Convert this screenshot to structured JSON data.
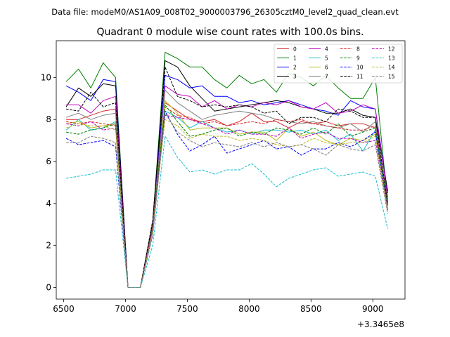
{
  "suptitle": "Data file: modeM0/AS1A09_008T02_9000003796_26305cztM0_level2_quad_clean.evt",
  "chart_data": {
    "type": "line",
    "title": "Quadrant 0 module wise count rates with 100.0s bins.",
    "xlabel": "",
    "ylabel": "",
    "x_offset_label": "+3.3465e8",
    "xlim": [
      6440,
      9260
    ],
    "ylim": [
      -0.55,
      11.75
    ],
    "xticks": [
      6500,
      7000,
      7500,
      8000,
      8500,
      9000
    ],
    "yticks": [
      0,
      2,
      4,
      6,
      8,
      10
    ],
    "grid": false,
    "legend_position": "top-right",
    "legend_columns": 4,
    "x": [
      6520,
      6620,
      6720,
      6820,
      6920,
      7020,
      7120,
      7220,
      7320,
      7420,
      7520,
      7620,
      7720,
      7820,
      7920,
      8020,
      8120,
      8220,
      8320,
      8420,
      8520,
      8620,
      8720,
      8820,
      8920,
      9020,
      9120
    ],
    "series": [
      {
        "name": "0",
        "color": "#d62728",
        "dash": "solid",
        "values": [
          8.0,
          8.0,
          8.2,
          8.4,
          8.5,
          0.0,
          0.0,
          3.0,
          8.8,
          8.4,
          8.0,
          7.9,
          8.0,
          7.7,
          7.9,
          8.3,
          7.9,
          7.9,
          7.6,
          7.9,
          7.8,
          7.9,
          7.7,
          7.8,
          7.8,
          7.6,
          4.2
        ]
      },
      {
        "name": "1",
        "color": "#008000",
        "dash": "solid",
        "values": [
          9.8,
          10.4,
          9.5,
          10.7,
          10.0,
          0.0,
          0.0,
          3.1,
          11.2,
          10.9,
          10.5,
          10.5,
          9.9,
          9.5,
          10.1,
          9.7,
          9.9,
          9.3,
          10.2,
          10.0,
          9.6,
          10.1,
          9.5,
          9.0,
          9.0,
          10.0,
          4.0
        ]
      },
      {
        "name": "2",
        "color": "#0000ff",
        "dash": "solid",
        "values": [
          9.6,
          9.3,
          8.9,
          9.9,
          9.8,
          0.0,
          0.0,
          3.0,
          10.1,
          9.9,
          9.5,
          9.6,
          9.1,
          9.1,
          8.8,
          8.9,
          8.7,
          8.8,
          8.9,
          8.7,
          8.5,
          8.4,
          8.2,
          8.9,
          8.6,
          8.5,
          4.5
        ]
      },
      {
        "name": "3",
        "color": "#000000",
        "dash": "solid",
        "values": [
          8.6,
          9.5,
          9.1,
          9.7,
          9.6,
          0.0,
          0.0,
          3.1,
          10.8,
          10.5,
          9.6,
          9.0,
          8.4,
          8.5,
          8.6,
          8.7,
          8.8,
          8.9,
          8.8,
          8.6,
          8.5,
          8.3,
          8.3,
          8.5,
          8.2,
          8.1,
          4.6
        ]
      },
      {
        "name": "4",
        "color": "#bf00bf",
        "dash": "solid",
        "values": [
          8.7,
          8.7,
          8.3,
          8.9,
          9.1,
          0.0,
          0.0,
          2.9,
          9.6,
          9.2,
          9.1,
          8.6,
          8.9,
          8.5,
          8.7,
          8.6,
          8.8,
          8.7,
          8.9,
          8.6,
          8.5,
          8.8,
          8.3,
          8.4,
          8.7,
          8.5,
          4.3
        ]
      },
      {
        "name": "5",
        "color": "#17becf",
        "dash": "solid",
        "values": [
          7.5,
          8.0,
          7.5,
          7.6,
          7.9,
          0.0,
          0.0,
          2.7,
          8.4,
          8.1,
          7.6,
          7.9,
          7.6,
          7.4,
          7.5,
          7.3,
          7.5,
          7.5,
          7.4,
          7.5,
          7.3,
          7.5,
          7.0,
          7.3,
          6.5,
          7.5,
          3.9
        ]
      },
      {
        "name": "6",
        "color": "#bcbd22",
        "dash": "solid",
        "values": [
          7.8,
          7.9,
          7.6,
          7.7,
          7.8,
          0.0,
          0.0,
          2.8,
          8.9,
          8.3,
          7.5,
          7.6,
          7.6,
          7.6,
          7.3,
          7.4,
          7.4,
          7.0,
          7.6,
          7.2,
          7.4,
          7.0,
          6.8,
          7.1,
          7.0,
          7.3,
          3.8
        ]
      },
      {
        "name": "7",
        "color": "#7f7f7f",
        "dash": "solid",
        "values": [
          8.1,
          8.3,
          8.0,
          8.2,
          8.3,
          0.0,
          0.0,
          2.9,
          9.4,
          8.8,
          8.4,
          8.0,
          8.2,
          8.3,
          8.4,
          8.3,
          8.2,
          8.0,
          7.9,
          7.8,
          7.9,
          7.7,
          7.6,
          7.8,
          7.4,
          7.9,
          4.1
        ]
      },
      {
        "name": "8",
        "color": "#d62728",
        "dash": "dashed",
        "values": [
          7.9,
          7.8,
          7.9,
          7.8,
          7.7,
          0.0,
          0.0,
          2.9,
          8.6,
          8.2,
          8.1,
          7.8,
          7.9,
          7.7,
          7.8,
          7.9,
          7.8,
          8.0,
          7.9,
          8.0,
          7.8,
          7.7,
          7.6,
          7.5,
          7.5,
          7.7,
          4.0
        ]
      },
      {
        "name": "9",
        "color": "#008000",
        "dash": "dashed",
        "values": [
          7.4,
          7.3,
          7.5,
          7.6,
          7.8,
          0.0,
          0.0,
          2.8,
          8.7,
          7.9,
          7.2,
          7.3,
          7.5,
          7.6,
          7.2,
          7.4,
          7.3,
          7.6,
          7.5,
          7.3,
          7.6,
          7.3,
          7.8,
          7.2,
          7.4,
          7.6,
          3.9
        ]
      },
      {
        "name": "10",
        "color": "#0000ff",
        "dash": "dashed",
        "values": [
          7.1,
          6.8,
          6.9,
          7.0,
          6.7,
          0.0,
          0.0,
          2.5,
          8.4,
          7.3,
          6.5,
          6.8,
          7.2,
          6.4,
          6.6,
          6.8,
          7.0,
          6.6,
          6.7,
          6.3,
          6.6,
          6.6,
          6.9,
          6.7,
          7.0,
          7.4,
          3.7
        ]
      },
      {
        "name": "11",
        "color": "#000000",
        "dash": "dashed",
        "values": [
          8.5,
          8.4,
          9.3,
          8.6,
          8.8,
          0.0,
          0.0,
          3.2,
          10.5,
          9.1,
          8.9,
          8.6,
          8.7,
          8.6,
          8.7,
          8.6,
          8.3,
          8.4,
          7.8,
          8.1,
          8.1,
          7.9,
          8.5,
          8.4,
          8.1,
          8.1,
          4.0
        ]
      },
      {
        "name": "12",
        "color": "#bf00bf",
        "dash": "dashed",
        "values": [
          7.8,
          7.7,
          7.9,
          7.5,
          7.6,
          0.0,
          0.0,
          2.8,
          8.2,
          8.1,
          8.0,
          7.8,
          7.6,
          7.3,
          7.5,
          7.3,
          7.3,
          7.2,
          7.6,
          7.1,
          7.3,
          7.4,
          7.1,
          7.1,
          6.9,
          7.0,
          3.7
        ]
      },
      {
        "name": "13",
        "color": "#17becf",
        "dash": "dashed",
        "values": [
          5.2,
          5.3,
          5.4,
          5.6,
          5.6,
          0.0,
          0.0,
          2.0,
          7.2,
          6.2,
          5.5,
          5.6,
          5.4,
          5.6,
          5.6,
          5.9,
          5.4,
          4.8,
          5.2,
          5.4,
          5.6,
          5.7,
          5.3,
          5.4,
          5.5,
          5.3,
          2.8
        ]
      },
      {
        "name": "14",
        "color": "#bcbd22",
        "dash": "dashed",
        "values": [
          7.6,
          7.8,
          7.7,
          7.7,
          7.5,
          0.0,
          0.0,
          2.7,
          8.0,
          7.7,
          7.1,
          7.3,
          7.2,
          7.2,
          7.0,
          7.1,
          7.0,
          6.8,
          6.7,
          6.8,
          7.1,
          6.9,
          6.8,
          6.9,
          6.9,
          7.2,
          3.6
        ]
      },
      {
        "name": "15",
        "color": "#7f7f7f",
        "dash": "dashed",
        "values": [
          6.9,
          6.9,
          7.2,
          7.1,
          6.9,
          0.0,
          0.0,
          2.5,
          8.3,
          7.4,
          7.0,
          6.7,
          6.9,
          6.8,
          6.7,
          6.9,
          6.7,
          6.9,
          6.7,
          6.8,
          6.6,
          6.3,
          6.8,
          6.6,
          6.5,
          6.8,
          3.5
        ]
      }
    ]
  }
}
